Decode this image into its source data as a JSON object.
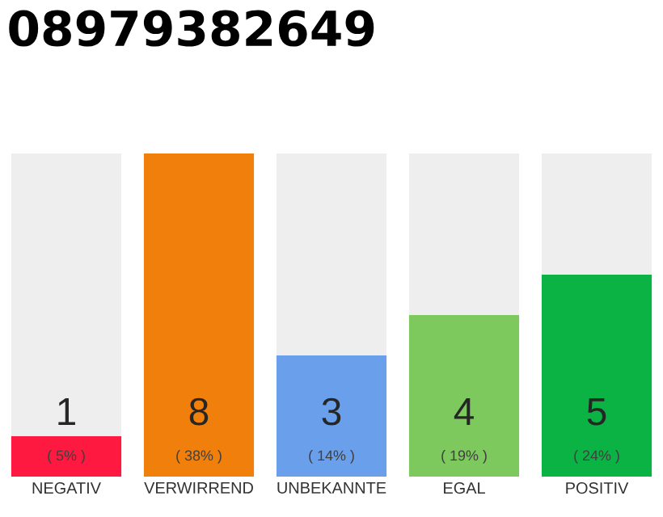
{
  "chart_data": {
    "type": "bar",
    "title": "08979382649",
    "categories": [
      "NEGATIV",
      "VERWIRREND",
      "UNBEKANNTE",
      "EGAL",
      "POSITIV"
    ],
    "values": [
      1,
      8,
      3,
      4,
      5
    ],
    "colors": [
      "#fe1941",
      "#f07f0c",
      "#6a9fec",
      "#7dc95e",
      "#0bb345"
    ],
    "data_labels": true,
    "annotations": [
      "( 5% )",
      "( 38% )",
      "( 14% )",
      "( 19% )",
      "( 24% )"
    ]
  }
}
